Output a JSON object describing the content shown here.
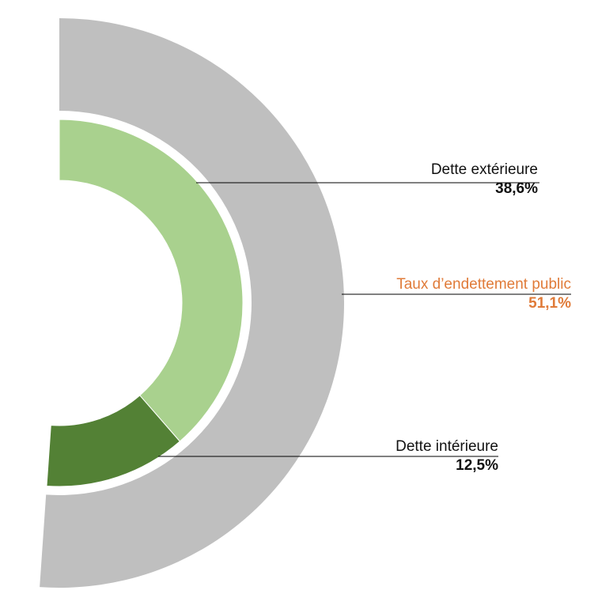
{
  "chart_data": {
    "type": "pie",
    "subtype": "nested-semi-donut",
    "outer_ring": {
      "label": "Taux d’endettement public",
      "value": 51.1,
      "value_label": "51,1%",
      "color": "#bfbfbf"
    },
    "inner_ring": [
      {
        "label": "Dette extérieure",
        "value": 38.6,
        "value_label": "38,6%",
        "color": "#a9d18e"
      },
      {
        "label": "Dette intérieure",
        "value": 12.5,
        "value_label": "12,5%",
        "color": "#538135"
      }
    ],
    "accent_color": "#e07b39"
  }
}
